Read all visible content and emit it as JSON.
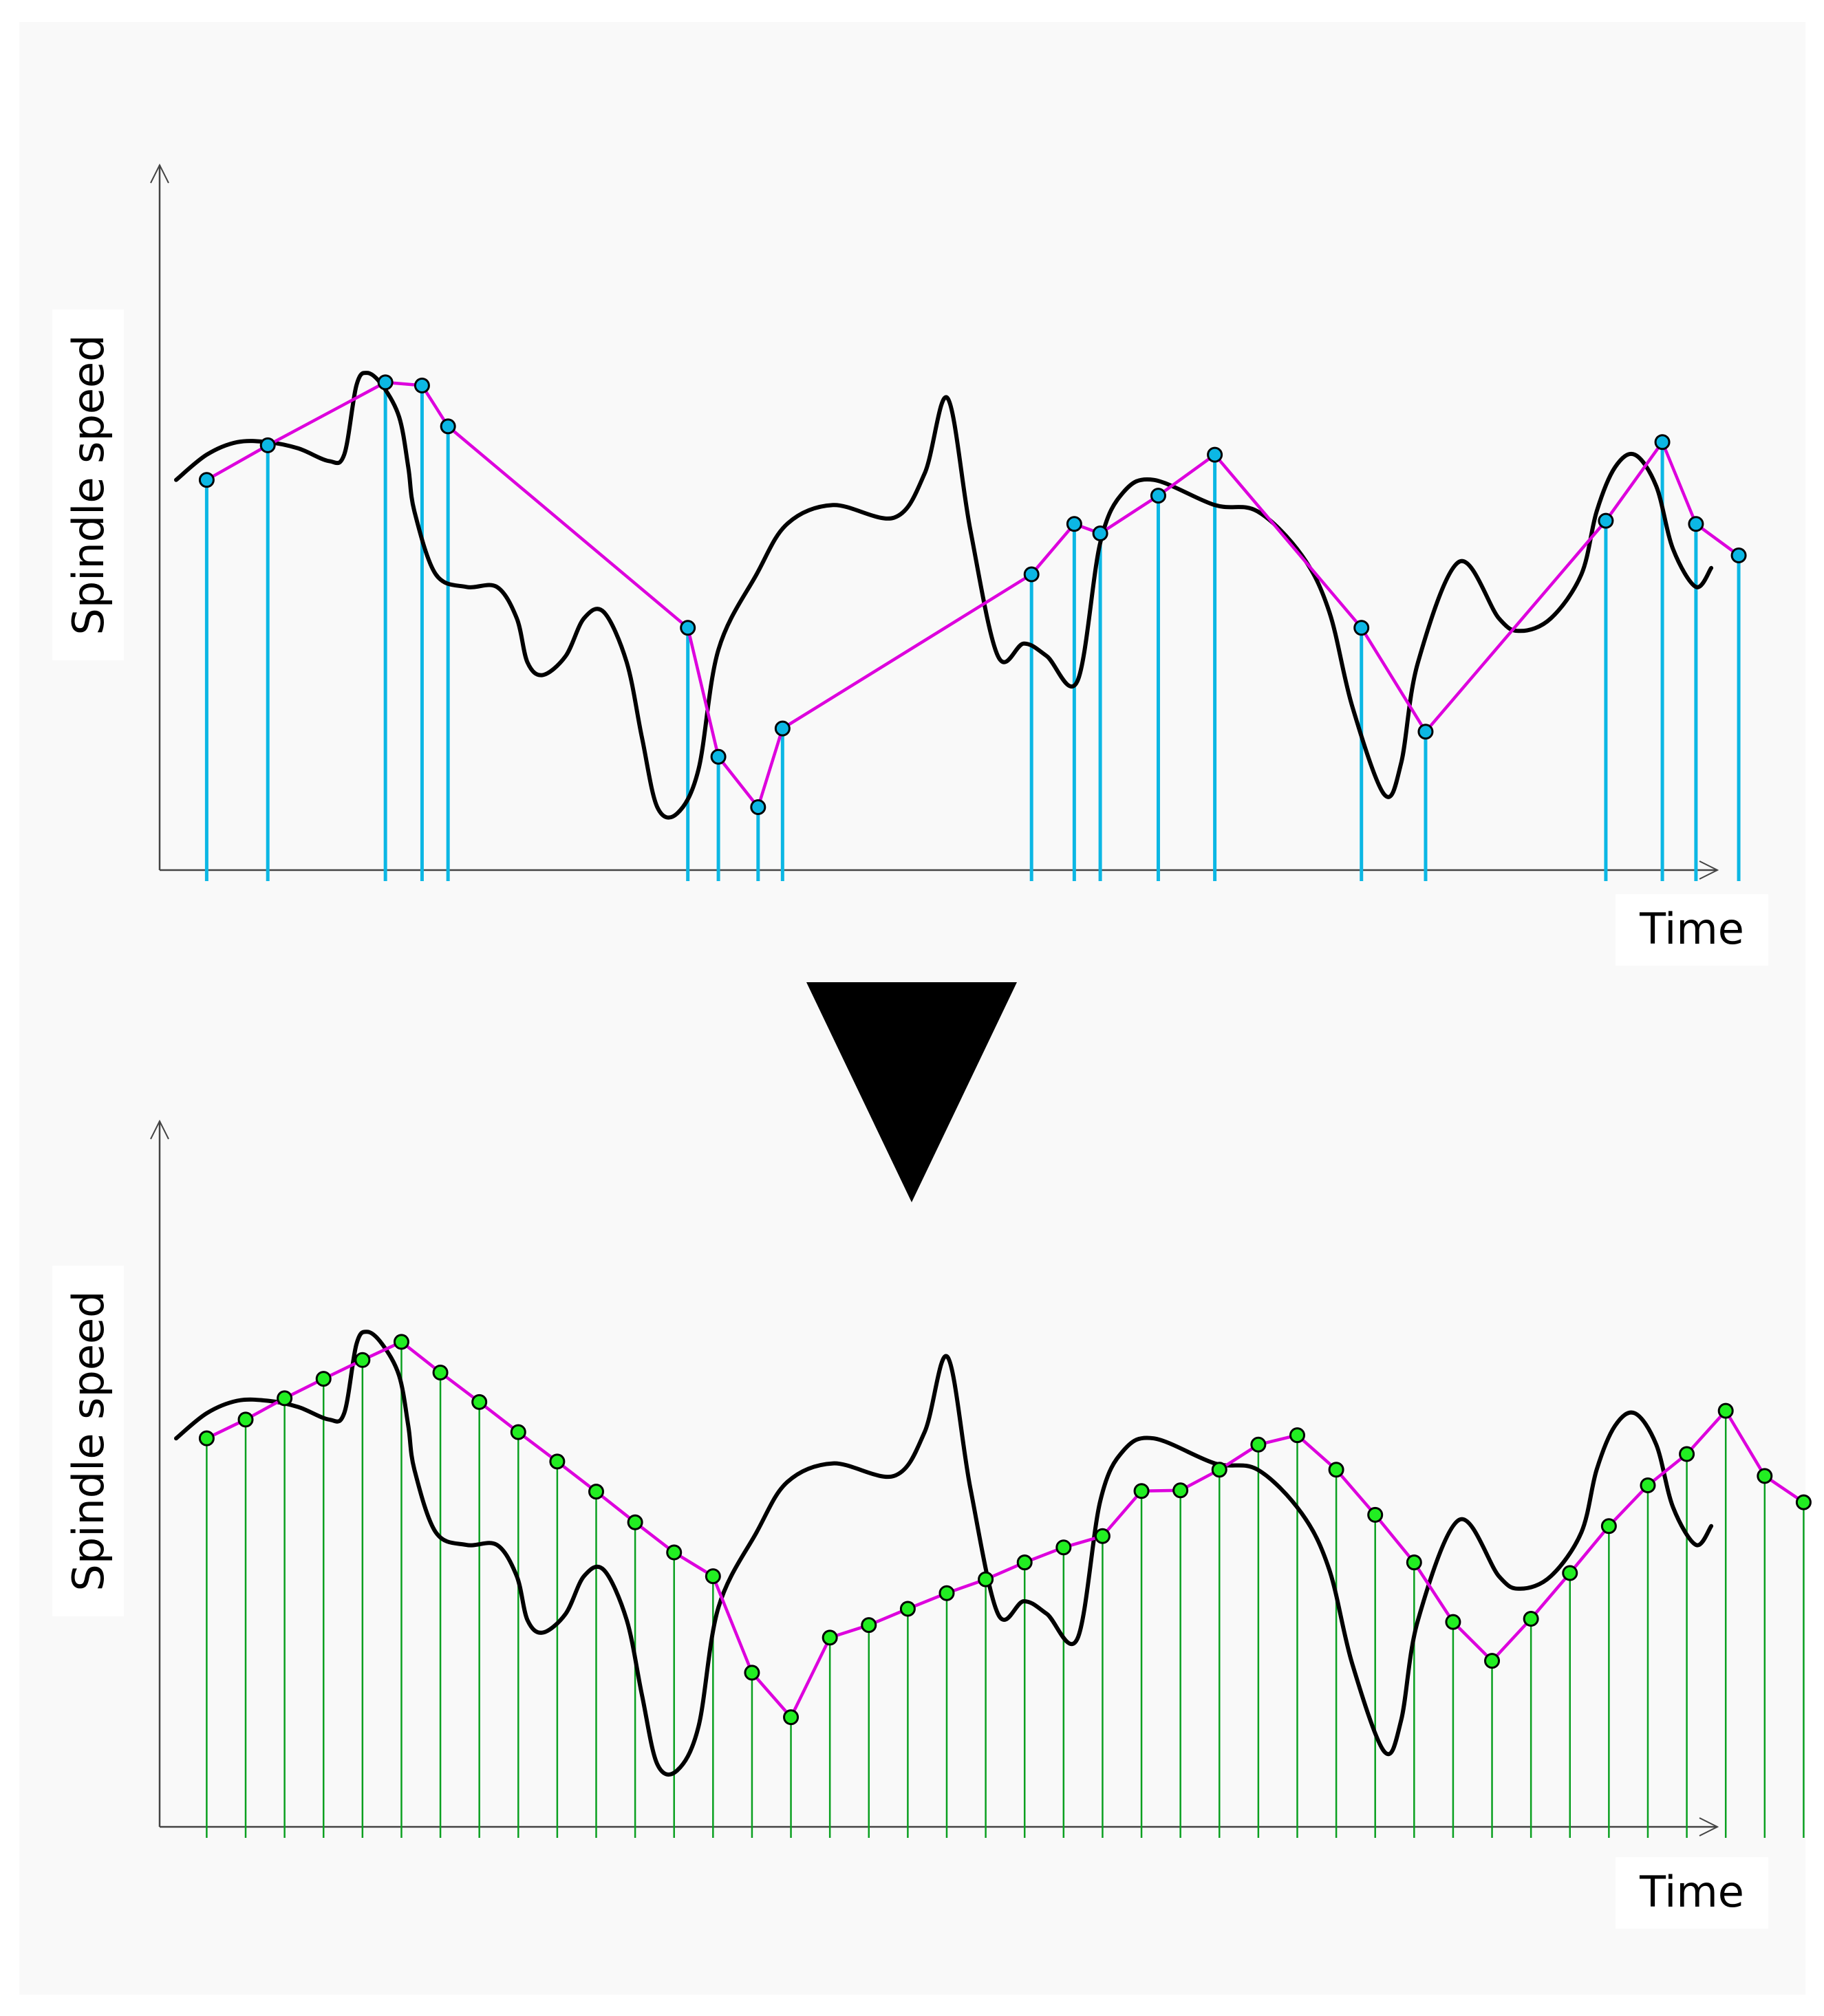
{
  "figure": {
    "background_color": "#f9f9f9",
    "label_box_color": "#ffffff",
    "signal_color": "#000000",
    "interp_color": "#dd00dd",
    "irregular_sample_color": "#0cb7e4",
    "regular_sample_color": "#0aa020",
    "regular_point_color": "#22ee22",
    "transition_arrow_icon": "down-triangle-icon"
  },
  "top_panel": {
    "ylabel": "Spindle speed",
    "xlabel": "Time",
    "x_range": [
      0,
      100
    ],
    "y_range": [
      0,
      100
    ],
    "signal": [
      [
        0,
        62
      ],
      [
        2,
        66
      ],
      [
        4,
        68
      ],
      [
        6,
        68
      ],
      [
        8,
        67
      ],
      [
        10,
        65
      ],
      [
        11,
        66
      ],
      [
        11.8,
        77
      ],
      [
        12.5,
        79
      ],
      [
        13.5,
        77
      ],
      [
        14.6,
        72
      ],
      [
        15.2,
        64
      ],
      [
        15.6,
        57
      ],
      [
        17,
        47
      ],
      [
        19,
        45
      ],
      [
        21,
        45
      ],
      [
        22.3,
        40
      ],
      [
        23,
        33
      ],
      [
        24,
        31
      ],
      [
        25.5,
        34
      ],
      [
        26.7,
        40
      ],
      [
        28,
        41
      ],
      [
        29.5,
        33
      ],
      [
        30.5,
        21
      ],
      [
        31.5,
        10
      ],
      [
        32.8,
        9
      ],
      [
        34.2,
        16
      ],
      [
        35.5,
        35
      ],
      [
        38,
        47
      ],
      [
        40,
        55
      ],
      [
        43,
        58
      ],
      [
        47,
        56
      ],
      [
        49,
        63
      ],
      [
        50.5,
        75
      ],
      [
        52,
        54
      ],
      [
        53.8,
        34
      ],
      [
        55.5,
        36
      ],
      [
        57,
        34
      ],
      [
        59,
        30
      ],
      [
        60.5,
        52
      ],
      [
        62,
        60
      ],
      [
        64,
        62
      ],
      [
        68,
        58
      ],
      [
        70.8,
        57
      ],
      [
        73.7,
        50
      ],
      [
        75.5,
        41
      ],
      [
        77,
        26
      ],
      [
        79.1,
        12
      ],
      [
        80.2,
        17
      ],
      [
        81.3,
        33
      ],
      [
        84,
        49
      ],
      [
        86.6,
        40
      ],
      [
        88,
        38
      ],
      [
        90,
        40
      ],
      [
        92,
        47
      ],
      [
        93,
        57
      ],
      [
        94.2,
        64
      ],
      [
        95.5,
        66
      ],
      [
        96.9,
        61
      ],
      [
        98,
        51
      ],
      [
        99.5,
        45
      ],
      [
        100.5,
        48
      ]
    ],
    "samples": [
      [
        2,
        62
      ],
      [
        6,
        67.5
      ],
      [
        13.7,
        77.5
      ],
      [
        16.1,
        77
      ],
      [
        17.8,
        70.5
      ],
      [
        33.5,
        38.5
      ],
      [
        35.5,
        18
      ],
      [
        38.1,
        10
      ],
      [
        39.7,
        22.5
      ],
      [
        56,
        47
      ],
      [
        58.8,
        55
      ],
      [
        60.5,
        53.5
      ],
      [
        64.3,
        59.5
      ],
      [
        68,
        66
      ],
      [
        77.6,
        38.5
      ],
      [
        81.8,
        22
      ],
      [
        93.6,
        55.5
      ],
      [
        97.3,
        68
      ],
      [
        99.5,
        55
      ],
      [
        102.3,
        50
      ]
    ]
  },
  "bottom_panel": {
    "ylabel": "Spindle speed",
    "xlabel": "Time",
    "x_range": [
      0,
      100
    ],
    "y_range": [
      0,
      100
    ],
    "signal": [
      [
        0,
        62
      ],
      [
        2,
        66
      ],
      [
        4,
        68
      ],
      [
        6,
        68
      ],
      [
        8,
        67
      ],
      [
        10,
        65
      ],
      [
        11,
        66
      ],
      [
        11.8,
        77
      ],
      [
        12.5,
        79
      ],
      [
        13.5,
        77
      ],
      [
        14.6,
        72
      ],
      [
        15.2,
        64
      ],
      [
        15.6,
        57
      ],
      [
        17,
        47
      ],
      [
        19,
        45
      ],
      [
        21,
        45
      ],
      [
        22.3,
        40
      ],
      [
        23,
        33
      ],
      [
        24,
        31
      ],
      [
        25.5,
        34
      ],
      [
        26.7,
        40
      ],
      [
        28,
        41
      ],
      [
        29.5,
        33
      ],
      [
        30.5,
        21
      ],
      [
        31.5,
        10
      ],
      [
        32.8,
        9
      ],
      [
        34.2,
        16
      ],
      [
        35.5,
        35
      ],
      [
        38,
        47
      ],
      [
        40,
        55
      ],
      [
        43,
        58
      ],
      [
        47,
        56
      ],
      [
        49,
        63
      ],
      [
        50.5,
        75
      ],
      [
        52,
        54
      ],
      [
        53.8,
        34
      ],
      [
        55.5,
        36
      ],
      [
        57,
        34
      ],
      [
        59,
        30
      ],
      [
        60.5,
        52
      ],
      [
        62,
        60
      ],
      [
        64,
        62
      ],
      [
        68,
        58
      ],
      [
        70.8,
        57
      ],
      [
        73.7,
        50
      ],
      [
        75.5,
        41
      ],
      [
        77,
        26
      ],
      [
        79.1,
        12
      ],
      [
        80.2,
        17
      ],
      [
        81.3,
        33
      ],
      [
        84,
        49
      ],
      [
        86.6,
        40
      ],
      [
        88,
        38
      ],
      [
        90,
        40
      ],
      [
        92,
        47
      ],
      [
        93,
        57
      ],
      [
        94.2,
        64
      ],
      [
        95.5,
        66
      ],
      [
        96.9,
        61
      ],
      [
        98,
        51
      ],
      [
        99.5,
        45
      ],
      [
        100.5,
        48
      ]
    ],
    "samples": [
      [
        2,
        62
      ],
      [
        4.55,
        65
      ],
      [
        7.1,
        68.4
      ],
      [
        9.65,
        71.5
      ],
      [
        12.2,
        74.5
      ],
      [
        14.75,
        77.4
      ],
      [
        17.3,
        72.5
      ],
      [
        19.85,
        67.8
      ],
      [
        22.4,
        63
      ],
      [
        24.95,
        58.3
      ],
      [
        27.5,
        53.5
      ],
      [
        30.05,
        48.6
      ],
      [
        32.6,
        43.8
      ],
      [
        35.15,
        40
      ],
      [
        37.7,
        24.6
      ],
      [
        40.25,
        17.5
      ],
      [
        42.8,
        30.2
      ],
      [
        45.35,
        32.2
      ],
      [
        47.9,
        34.8
      ],
      [
        50.45,
        37.3
      ],
      [
        53,
        39.5
      ],
      [
        55.55,
        42.2
      ],
      [
        58.1,
        44.6
      ],
      [
        60.65,
        46.4
      ],
      [
        63.2,
        53.6
      ],
      [
        65.75,
        53.7
      ],
      [
        68.3,
        57
      ],
      [
        70.85,
        61
      ],
      [
        73.4,
        62.5
      ],
      [
        75.95,
        57
      ],
      [
        78.5,
        49.8
      ],
      [
        81.05,
        42.2
      ],
      [
        83.6,
        32.7
      ],
      [
        86.15,
        26.5
      ],
      [
        88.7,
        33.2
      ],
      [
        91.25,
        40.5
      ],
      [
        93.8,
        48
      ],
      [
        96.35,
        54.5
      ],
      [
        98.9,
        59.5
      ],
      [
        101.45,
        66.4
      ],
      [
        104,
        56
      ],
      [
        106.55,
        51.8
      ]
    ]
  }
}
